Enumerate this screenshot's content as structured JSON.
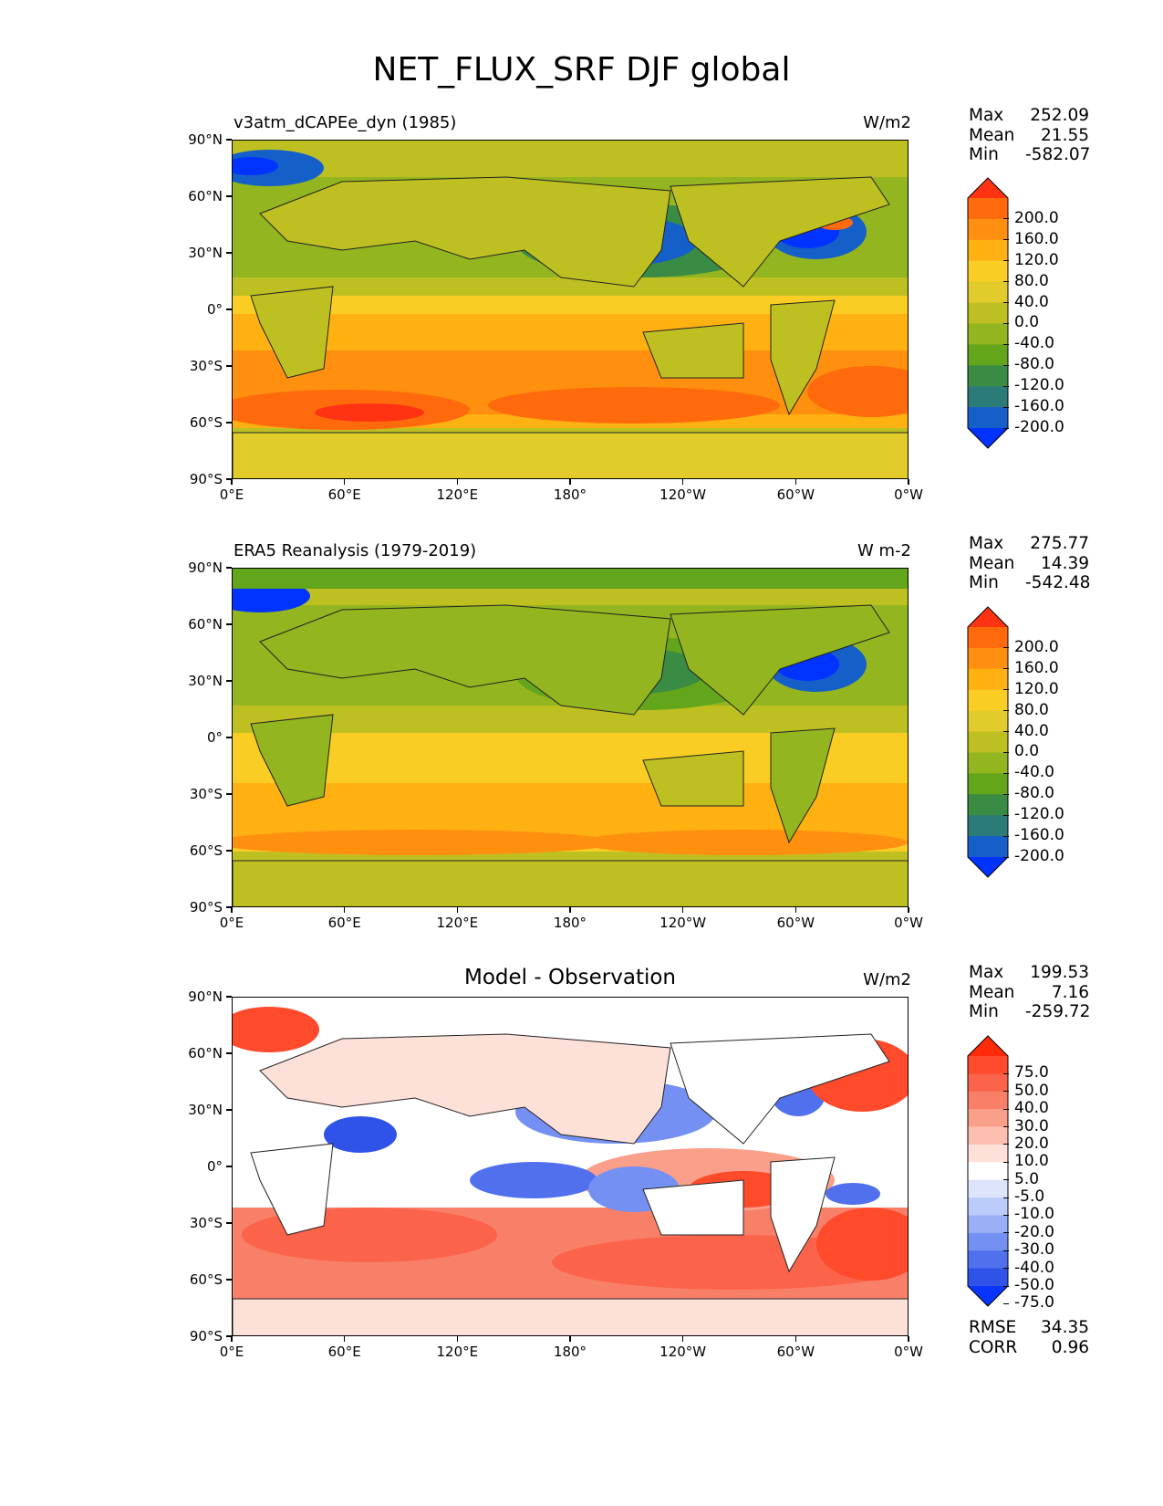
{
  "figure_title": "NET_FLUX_SRF DJF global",
  "x_ticks": [
    "0°E",
    "60°E",
    "120°E",
    "180°",
    "120°W",
    "60°W",
    "0°W"
  ],
  "y_ticks": [
    "90°N",
    "60°N",
    "30°N",
    "0°",
    "30°S",
    "60°S",
    "90°S"
  ],
  "panels": [
    {
      "title": "v3atm_dCAPEe_dyn (1985)",
      "units": "W/m2",
      "stats": {
        "max_label": "Max",
        "max": "252.09",
        "mean_label": "Mean",
        "mean": "21.55",
        "min_label": "Min",
        "min": "-582.07"
      },
      "colorbar": {
        "labels": [
          "200.0",
          "160.0",
          "120.0",
          "80.0",
          "40.0",
          "0.0",
          "-40.0",
          "-80.0",
          "-120.0",
          "-160.0",
          "-200.0"
        ],
        "colors": [
          "#ff3311",
          "#ff6a0d",
          "#ff8f0e",
          "#ffb111",
          "#f9cd23",
          "#e2cc2c",
          "#bec022",
          "#93b51f",
          "#63a51b",
          "#3a8b44",
          "#2b7b78",
          "#1560c8",
          "#0033ff"
        ]
      }
    },
    {
      "title": "ERA5 Reanalysis (1979-2019)",
      "units": "W m-2",
      "stats": {
        "max_label": "Max",
        "max": "275.77",
        "mean_label": "Mean",
        "mean": "14.39",
        "min_label": "Min",
        "min": "-542.48"
      },
      "colorbar": {
        "labels": [
          "200.0",
          "160.0",
          "120.0",
          "80.0",
          "40.0",
          "0.0",
          "-40.0",
          "-80.0",
          "-120.0",
          "-160.0",
          "-200.0"
        ],
        "colors": [
          "#ff3311",
          "#ff6a0d",
          "#ff8f0e",
          "#ffb111",
          "#f9cd23",
          "#e2cc2c",
          "#bec022",
          "#93b51f",
          "#63a51b",
          "#3a8b44",
          "#2b7b78",
          "#1560c8",
          "#0033ff"
        ]
      }
    },
    {
      "title": "Model - Observation",
      "units": "W/m2",
      "stats": {
        "max_label": "Max",
        "max": "199.53",
        "mean_label": "Mean",
        "mean": "7.16",
        "min_label": "Min",
        "min": "-259.72"
      },
      "colorbar": {
        "labels": [
          "75.0",
          "50.0",
          "40.0",
          "30.0",
          "20.0",
          "10.0",
          "5.0",
          "-5.0",
          "-10.0",
          "-20.0",
          "-30.0",
          "-40.0",
          "-50.0",
          "-75.0"
        ],
        "colors": [
          "#ff2a0a",
          "#ff4a2c",
          "#fb634a",
          "#f98068",
          "#fa9f8a",
          "#fcbfb0",
          "#fde0d8",
          "#ffffff",
          "#dde5fc",
          "#bcccfa",
          "#99b0f7",
          "#7590f3",
          "#5170ee",
          "#2f52e8",
          "#0a35ff"
        ]
      },
      "rmse_label": "RMSE",
      "rmse": "34.35",
      "corr_label": "CORR",
      "corr": "0.96"
    }
  ]
}
